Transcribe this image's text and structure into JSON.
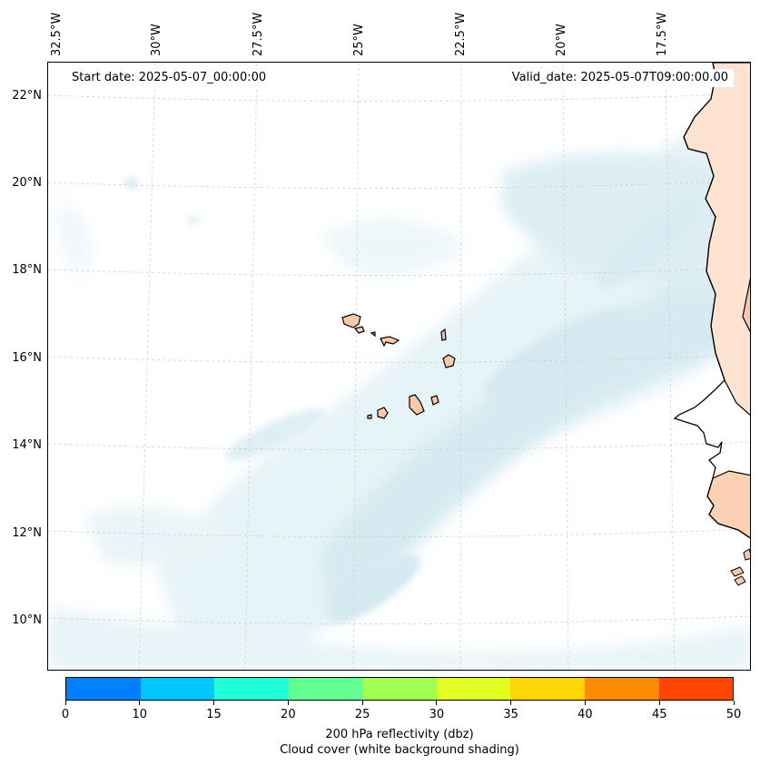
{
  "map": {
    "start_date": "Start date: 2025-05-07_00:00:00",
    "valid_date": "Valid_date: 2025-05-07T09:00:00.00",
    "lon_labels": [
      "32.5°W",
      "30°W",
      "27.5°W",
      "25°W",
      "22.5°W",
      "20°W",
      "17.5°W"
    ],
    "lat_labels": [
      "22°N",
      "20°N",
      "18°N",
      "16°N",
      "14°N",
      "12°N",
      "10°N"
    ],
    "colors": {
      "cloud": "#cfe8f0",
      "land_fill": "#f9c9a8",
      "coast": "#000000",
      "grid": "#cccccc"
    }
  },
  "colorbar": {
    "ticks": [
      "0",
      "10",
      "15",
      "20",
      "25",
      "30",
      "35",
      "40",
      "45",
      "50"
    ],
    "colors": [
      "#0080ff",
      "#00c8ff",
      "#20ffd8",
      "#60ff90",
      "#a0ff50",
      "#e0ff20",
      "#ffd700",
      "#ff8c00",
      "#ff4500"
    ],
    "label_line1": "200 hPa reflectivity (dbz)",
    "label_line2": "Cloud cover (white background shading)"
  }
}
